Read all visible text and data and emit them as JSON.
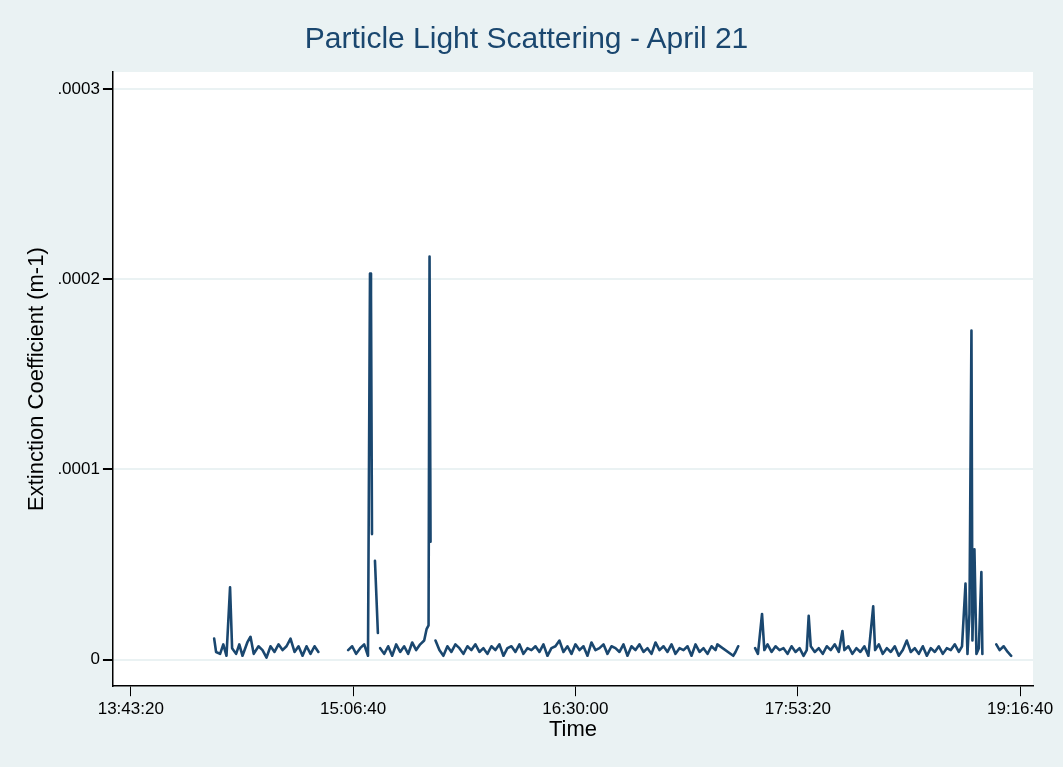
{
  "chart_data": {
    "type": "line",
    "title": "Particle Light Scattering - April 21",
    "xlabel": "Time",
    "ylabel": "Extinction Coefficient (m-1)",
    "xlim": [
      13.6106,
      19.3584
    ],
    "ylim": [
      -1.4e-05,
      0.000309
    ],
    "xticks": [
      {
        "value": 13.72222,
        "label": "13:43:20"
      },
      {
        "value": 15.11111,
        "label": "15:06:40"
      },
      {
        "value": 16.5,
        "label": "16:30:00"
      },
      {
        "value": 17.88889,
        "label": "17:53:20"
      },
      {
        "value": 19.27778,
        "label": "19:16:40"
      }
    ],
    "yticks": [
      0,
      {
        "value": 0.0001,
        "label": ".0001"
      },
      {
        "value": 0.0002,
        "label": ".0002"
      },
      {
        "value": 0.0003,
        "label": ".0003"
      }
    ],
    "grid": "y",
    "legend": false,
    "marker": "none",
    "line_style": "solid",
    "x": [
      14.243,
      14.255,
      14.28,
      14.3,
      14.32,
      14.3422,
      14.355,
      14.38,
      14.4,
      14.42,
      14.45,
      14.47,
      14.49,
      14.52,
      14.545,
      14.57,
      14.595,
      14.62,
      14.645,
      14.67,
      14.695,
      14.72,
      14.745,
      14.77,
      14.795,
      14.82,
      14.845,
      14.87,
      14.894,
      14.98,
      15.08,
      15.105,
      15.13,
      15.155,
      15.18,
      15.204,
      15.2165,
      15.2227,
      15.2289,
      15.238,
      15.2475,
      15.2658,
      15.272,
      15.28,
      15.305,
      15.33,
      15.355,
      15.38,
      15.405,
      15.43,
      15.455,
      15.48,
      15.505,
      15.53,
      15.555,
      15.5699,
      15.5823,
      15.5885,
      15.5947,
      15.61,
      15.6257,
      15.65,
      15.675,
      15.7,
      15.725,
      15.75,
      15.775,
      15.8,
      15.825,
      15.85,
      15.875,
      15.9,
      15.925,
      15.95,
      15.975,
      16,
      16.025,
      16.05,
      16.075,
      16.1,
      16.125,
      16.15,
      16.175,
      16.2,
      16.225,
      16.25,
      16.275,
      16.3,
      16.325,
      16.35,
      16.375,
      16.4,
      16.425,
      16.45,
      16.475,
      16.5,
      16.525,
      16.55,
      16.575,
      16.6,
      16.625,
      16.65,
      16.675,
      16.7,
      16.725,
      16.75,
      16.775,
      16.8,
      16.825,
      16.85,
      16.875,
      16.9,
      16.925,
      16.95,
      16.975,
      17,
      17.025,
      17.05,
      17.075,
      17.1,
      17.125,
      17.15,
      17.175,
      17.2,
      17.225,
      17.25,
      17.275,
      17.3,
      17.325,
      17.35,
      17.375,
      17.3866,
      17.4858,
      17.5,
      17.5168,
      17.57,
      17.6223,
      17.64,
      17.6656,
      17.68,
      17.7,
      17.725,
      17.75,
      17.775,
      17.8,
      17.825,
      17.85,
      17.875,
      17.9,
      17.925,
      17.945,
      17.9571,
      17.97,
      17.995,
      18.02,
      18.045,
      18.07,
      18.095,
      18.12,
      18.145,
      18.1679,
      18.18,
      18.205,
      18.23,
      18.255,
      18.28,
      18.305,
      18.33,
      18.3601,
      18.372,
      18.395,
      18.42,
      18.445,
      18.47,
      18.495,
      18.52,
      18.545,
      18.57,
      18.595,
      18.62,
      18.645,
      18.67,
      18.695,
      18.72,
      18.745,
      18.77,
      18.795,
      18.82,
      18.845,
      18.87,
      18.895,
      18.915,
      18.9367,
      18.949,
      18.9615,
      18.9739,
      18.98,
      18.9925,
      19.005,
      19.02,
      19.0359,
      19.0421,
      19.085,
      19.129,
      19.15,
      19.175,
      19.2,
      19.222
    ],
    "series": [
      {
        "color": "#1a476f",
        "values": [
          1.1e-05,
          4e-06,
          3e-06,
          8e-06,
          2e-06,
          3.8e-05,
          6e-06,
          3e-06,
          8e-06,
          2e-06,
          9e-06,
          1.2e-05,
          3e-06,
          7e-06,
          5e-06,
          1e-06,
          7e-06,
          4e-06,
          8e-06,
          5e-06,
          7e-06,
          1.1e-05,
          4e-06,
          7e-06,
          2e-06,
          7e-06,
          3e-06,
          7e-06,
          4e-06,
          null,
          5e-06,
          7e-06,
          3e-06,
          6e-06,
          8e-06,
          2e-06,
          0.000203,
          0.000192,
          6.6e-05,
          null,
          5.2e-05,
          1.4e-05,
          null,
          6e-06,
          3e-06,
          7e-06,
          2e-06,
          8e-06,
          4e-06,
          7e-06,
          3e-06,
          9e-06,
          5e-06,
          8e-06,
          1e-05,
          1.6e-05,
          1.8e-05,
          0.000212,
          6.2e-05,
          null,
          1e-05,
          5e-06,
          2e-06,
          7e-06,
          4e-06,
          8e-06,
          6e-06,
          3e-06,
          7e-06,
          5e-06,
          8e-06,
          4e-06,
          6e-06,
          3e-06,
          7e-06,
          5e-06,
          8e-06,
          2e-06,
          6e-06,
          7e-06,
          4e-06,
          8e-06,
          3e-06,
          6e-06,
          5e-06,
          7e-06,
          4e-06,
          8e-06,
          2e-06,
          6e-06,
          7e-06,
          1e-05,
          4e-06,
          7e-06,
          3e-06,
          8e-06,
          5e-06,
          7e-06,
          2e-06,
          9e-06,
          5e-06,
          6e-06,
          8e-06,
          3e-06,
          7e-06,
          6e-06,
          4e-06,
          8e-06,
          2e-06,
          7e-06,
          5e-06,
          8e-06,
          4e-06,
          6e-06,
          3e-06,
          9e-06,
          5e-06,
          7e-06,
          4e-06,
          8e-06,
          3e-06,
          6e-06,
          5e-06,
          7e-06,
          2e-06,
          8e-06,
          4e-06,
          6e-06,
          3e-06,
          7e-06,
          5e-06,
          8e-06,
          2e-06,
          4e-06,
          7e-06,
          null,
          6e-06,
          3e-06,
          2.4e-05,
          5e-06,
          8e-06,
          4e-06,
          7e-06,
          5e-06,
          6e-06,
          3e-06,
          7e-06,
          4e-06,
          6e-06,
          2e-06,
          5e-06,
          2.3e-05,
          7e-06,
          4e-06,
          6e-06,
          3e-06,
          7e-06,
          5e-06,
          8e-06,
          4e-06,
          1.5e-05,
          5e-06,
          7e-06,
          3e-06,
          6e-06,
          4e-06,
          7e-06,
          2e-06,
          2.8e-05,
          5e-06,
          8e-06,
          3e-06,
          6e-06,
          4e-06,
          7e-06,
          2e-06,
          5e-06,
          1e-05,
          4e-06,
          6e-06,
          3e-06,
          7e-06,
          2e-06,
          6e-06,
          4e-06,
          7e-06,
          3e-06,
          6e-06,
          5e-06,
          8e-06,
          4e-06,
          7e-06,
          4e-05,
          3e-06,
          2.4e-05,
          0.000173,
          1e-05,
          5.8e-05,
          3e-06,
          6e-06,
          4.6e-05,
          3e-06,
          null,
          8e-06,
          5e-06,
          7e-06,
          4e-06,
          2e-06
        ]
      }
    ]
  }
}
